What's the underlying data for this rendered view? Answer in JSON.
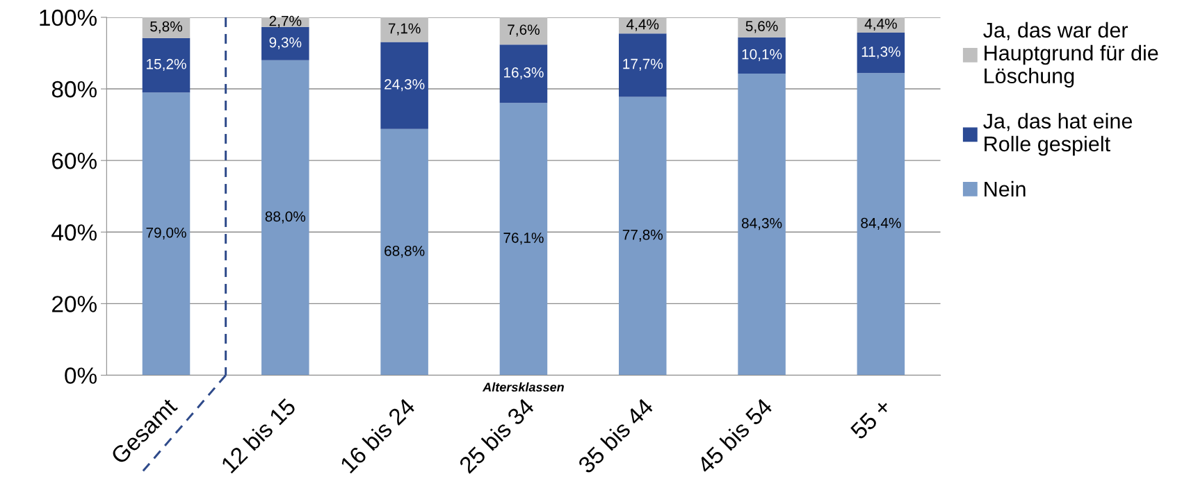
{
  "chart_data": {
    "type": "bar",
    "stacked": true,
    "xlabel": "Altersklassen",
    "categories": [
      "Gesamt",
      "12 bis 15",
      "16 bis 24",
      "25 bis 34",
      "35 bis 44",
      "45 bis 54",
      "55 +"
    ],
    "series": [
      {
        "name": "Nein",
        "color": "#7b9cc8",
        "values": [
          79.0,
          88.0,
          68.8,
          76.1,
          77.8,
          84.3,
          84.4
        ],
        "value_labels": [
          "79,0%",
          "88,0%",
          "68,8%",
          "76,1%",
          "77,8%",
          "84,3%",
          "84,4%"
        ]
      },
      {
        "name": "Ja, das hat eine\nRolle gespielt",
        "color": "#2b4a94",
        "values": [
          15.2,
          9.3,
          24.3,
          16.3,
          17.7,
          10.1,
          11.3
        ],
        "value_labels": [
          "15,2%",
          "9,3%",
          "24,3%",
          "16,3%",
          "17,7%",
          "10,1%",
          "11,3%"
        ]
      },
      {
        "name": "Ja, das war der\nHauptgrund für die\nLöschung",
        "color": "#bfbfbf",
        "values": [
          5.8,
          2.7,
          7.1,
          7.6,
          4.4,
          5.6,
          4.4
        ],
        "value_labels": [
          "5,8%",
          "2,7%",
          "7,1%",
          "7,6%",
          "4,4%",
          "5,6%",
          "4,4%"
        ]
      }
    ],
    "ylim": [
      0,
      100
    ],
    "yticks": [
      {
        "value": 0,
        "label": "0%"
      },
      {
        "value": 20,
        "label": "20%"
      },
      {
        "value": 40,
        "label": "40%"
      },
      {
        "value": 60,
        "label": "60%"
      },
      {
        "value": 80,
        "label": "80%"
      },
      {
        "value": 100,
        "label": "100%"
      }
    ],
    "grid": "y",
    "legend": "right"
  }
}
